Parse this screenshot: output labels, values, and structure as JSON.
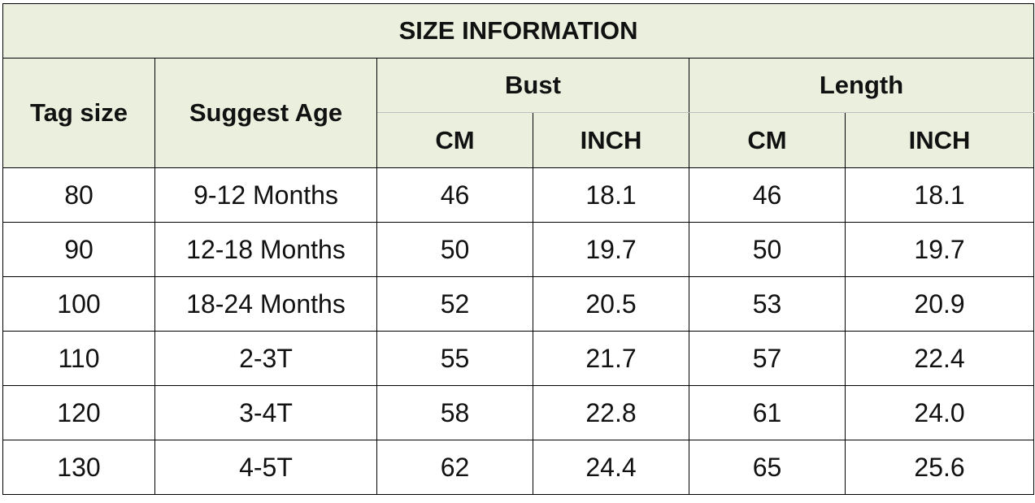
{
  "table": {
    "title": "SIZE INFORMATION",
    "headers": {
      "tag_size": "Tag size",
      "suggest_age": "Suggest Age",
      "bust": "Bust",
      "length": "Length",
      "bust_cm": "CM",
      "bust_inch": "INCH",
      "length_cm": "CM",
      "length_inch": "INCH"
    },
    "rows": [
      {
        "tag": "80",
        "age": "9-12 Months",
        "bust_cm": "46",
        "bust_inch": "18.1",
        "length_cm": "46",
        "length_inch": "18.1"
      },
      {
        "tag": "90",
        "age": "12-18 Months",
        "bust_cm": "50",
        "bust_inch": "19.7",
        "length_cm": "50",
        "length_inch": "19.7"
      },
      {
        "tag": "100",
        "age": "18-24 Months",
        "bust_cm": "52",
        "bust_inch": "20.5",
        "length_cm": "53",
        "length_inch": "20.9"
      },
      {
        "tag": "110",
        "age": "2-3T",
        "bust_cm": "55",
        "bust_inch": "21.7",
        "length_cm": "57",
        "length_inch": "22.4"
      },
      {
        "tag": "120",
        "age": "3-4T",
        "bust_cm": "58",
        "bust_inch": "22.8",
        "length_cm": "61",
        "length_inch": "24.0"
      },
      {
        "tag": "130",
        "age": "4-5T",
        "bust_cm": "62",
        "bust_inch": "24.4",
        "length_cm": "65",
        "length_inch": "25.6"
      }
    ]
  }
}
